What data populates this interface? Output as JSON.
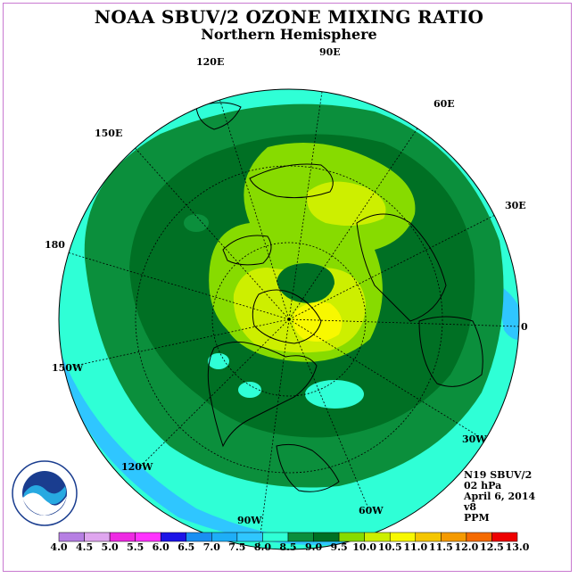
{
  "title": "NOAA SBUV/2 OZONE MIXING RATIO",
  "subtitle": "Northern Hemisphere",
  "longitude_labels": [
    "90E",
    "60E",
    "30E",
    "0",
    "30W",
    "60W",
    "90W",
    "120W",
    "150W",
    "180",
    "150E",
    "120E"
  ],
  "info": {
    "instrument": "N19 SBUV/2",
    "level": "02 hPa",
    "date": "April 6, 2014",
    "version": "v8",
    "units": "PPM"
  },
  "logo": {
    "text": "NOAA",
    "ring_text": "NATIONAL OCEANIC AND ATMOSPHERIC ADMINISTRATION · U.S. DEPARTMENT OF COMMERCE"
  },
  "color_scale": {
    "ticks": [
      "4.0",
      "4.5",
      "5.0",
      "5.5",
      "6.0",
      "6.5",
      "7.0",
      "7.5",
      "8.0",
      "8.5",
      "9.0",
      "9.5",
      "10.0",
      "10.5",
      "11.0",
      "11.5",
      "12.0",
      "12.5",
      "13.0"
    ],
    "colors": [
      "#b67fe3",
      "#dfa6ef",
      "#ee2ae3",
      "#ff33ff",
      "#1d14e7",
      "#1a8ff2",
      "#1eaef7",
      "#2fc6ff",
      "#2fffd6",
      "#0b8f3c",
      "#007024",
      "#87db00",
      "#cdef00",
      "#f8f800",
      "#f5c600",
      "#f59a00",
      "#f56a00",
      "#ee0000",
      "#8b5a3c"
    ]
  }
}
